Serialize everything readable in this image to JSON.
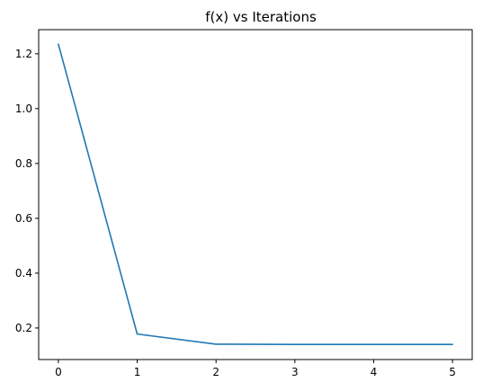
{
  "chart_data": {
    "type": "line",
    "title": "f(x) vs Iterations",
    "xlabel": "",
    "ylabel": "",
    "x": [
      0,
      1,
      2,
      3,
      4,
      5
    ],
    "series": [
      {
        "values": [
          1.235,
          0.178,
          0.141,
          0.14,
          0.14,
          0.14
        ],
        "color": "#1f77b4"
      }
    ],
    "xlim": [
      -0.25,
      5.25
    ],
    "ylim": [
      0.085,
      1.288
    ],
    "xticks": [
      0,
      1,
      2,
      3,
      4,
      5
    ],
    "xtick_labels": [
      "0",
      "1",
      "2",
      "3",
      "4",
      "5"
    ],
    "yticks": [
      0.2,
      0.4,
      0.6,
      0.8,
      1.0,
      1.2
    ],
    "ytick_labels": [
      "0.2",
      "0.4",
      "0.6",
      "0.8",
      "1.0",
      "1.2"
    ],
    "grid": false,
    "legend": "none"
  }
}
